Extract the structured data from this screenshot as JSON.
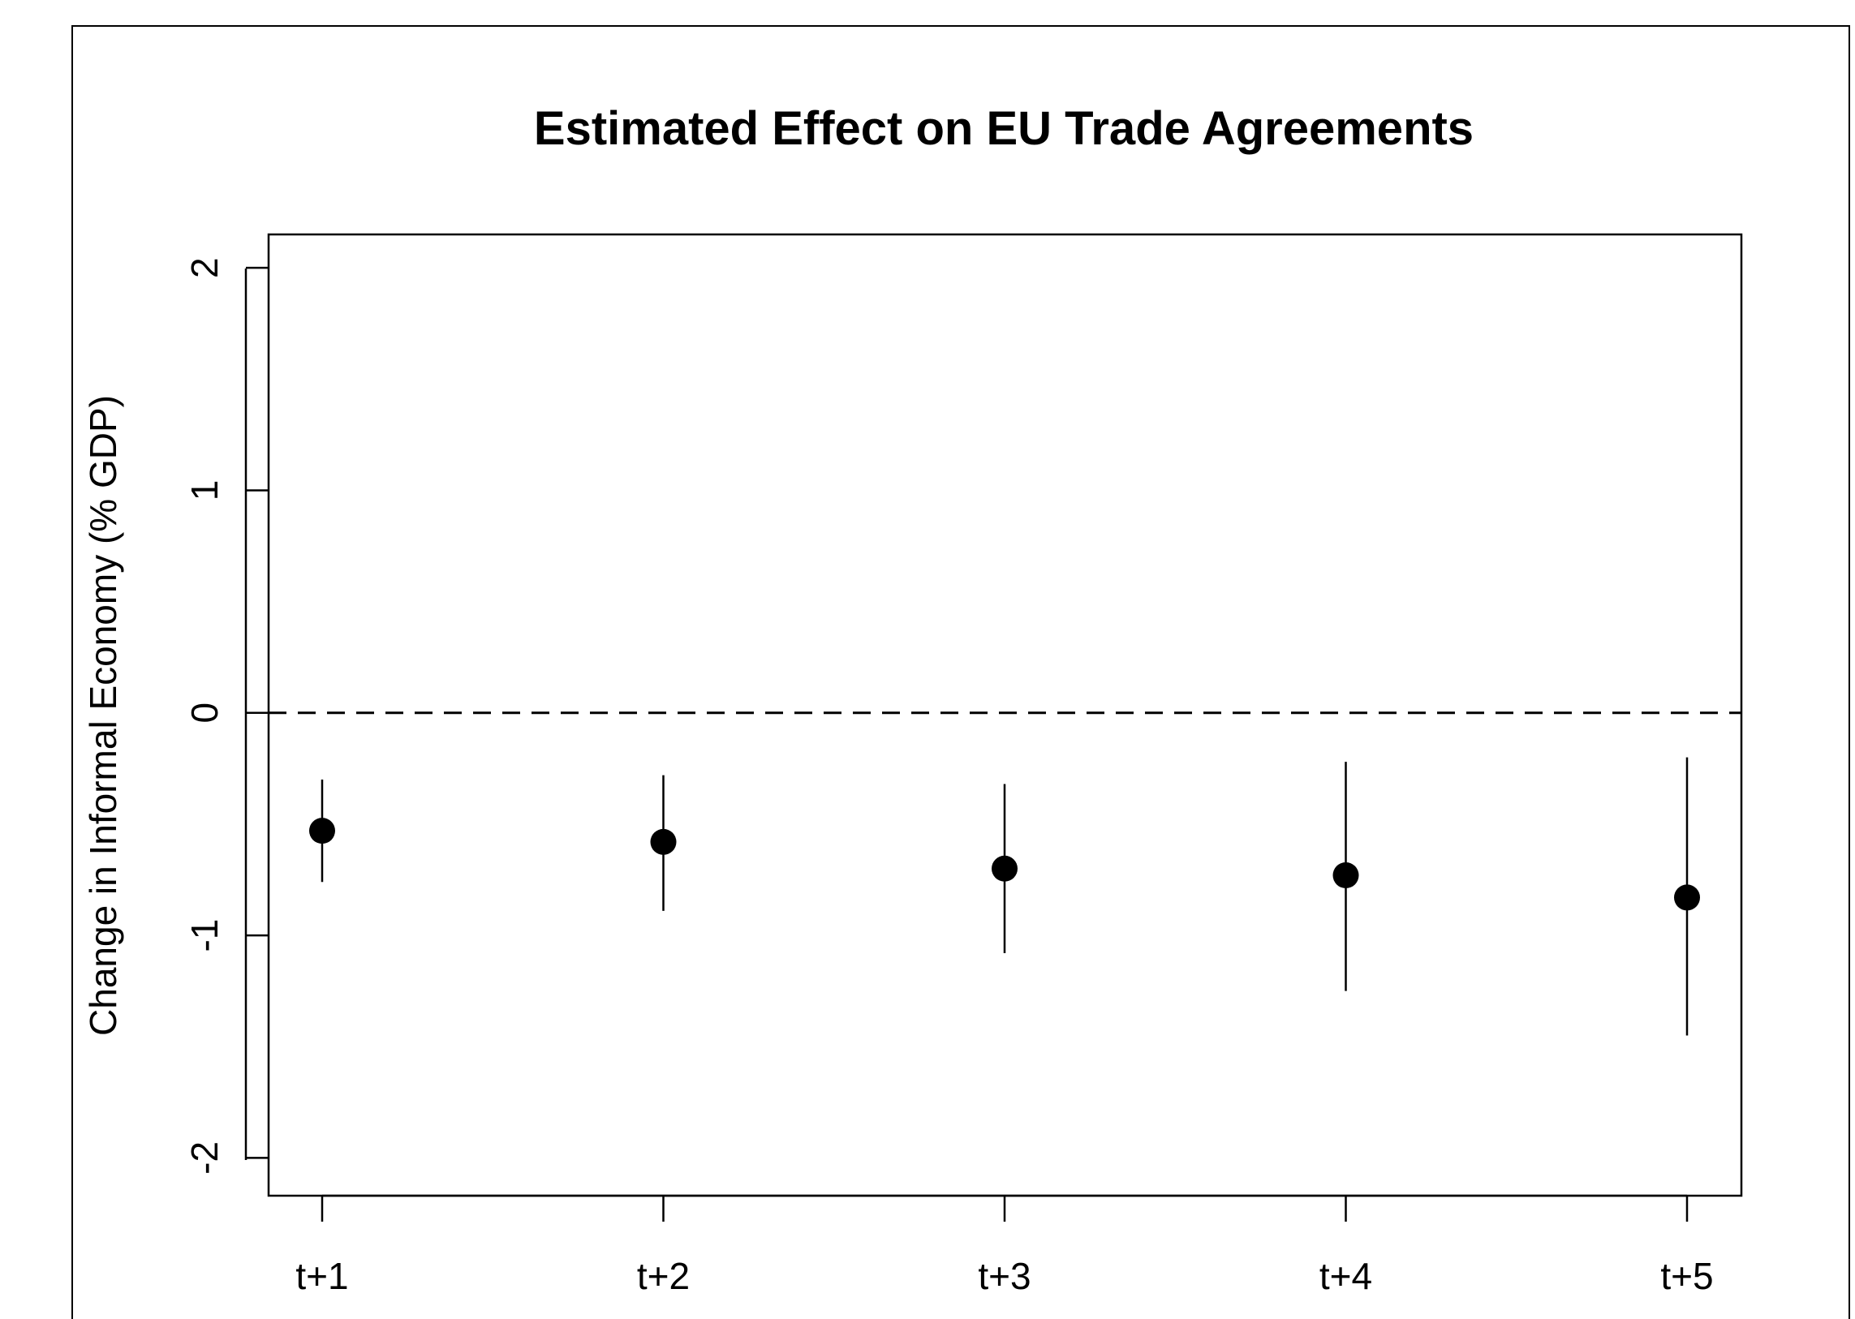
{
  "chart_data": {
    "type": "scatter",
    "title": "Estimated Effect on EU Trade Agreements",
    "xlabel": "",
    "ylabel": "Change in Informal Economy (% GDP)",
    "categories": [
      "t+1",
      "t+2",
      "t+3",
      "t+4",
      "t+5"
    ],
    "values": [
      -0.53,
      -0.58,
      -0.7,
      -0.73,
      -0.83
    ],
    "ci_lower": [
      -0.76,
      -0.89,
      -1.08,
      -1.25,
      -1.45
    ],
    "ci_upper": [
      -0.3,
      -0.28,
      -0.32,
      -0.22,
      -0.2
    ],
    "ylim": [
      -2.17,
      2.15
    ],
    "yticks": [
      "-2",
      "-1",
      "0",
      "1",
      "2"
    ],
    "reference_line": {
      "y": 0,
      "style": "dashed"
    },
    "grid": false,
    "legend": "none"
  }
}
